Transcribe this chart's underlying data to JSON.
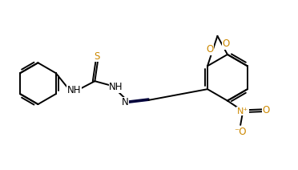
{
  "bg_color": "#ffffff",
  "bond_color": "#000000",
  "dbl_bond_color": "#00003a",
  "heteroatom_color": "#cc8800",
  "black": "#000000",
  "lw": 1.4,
  "fs": 8.5,
  "xlim": [
    0,
    10
  ],
  "ylim": [
    0,
    5.7
  ],
  "figw": 3.72,
  "figh": 2.12,
  "dpi": 100
}
